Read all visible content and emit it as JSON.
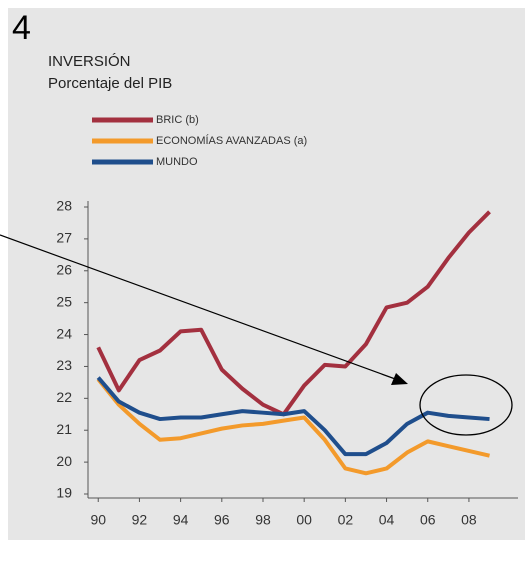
{
  "chart_data": {
    "type": "line",
    "number": "4",
    "title": "INVERSIÓN",
    "subtitle": "Porcentaje del PIB",
    "x": [
      1990,
      1991,
      1992,
      1993,
      1994,
      1995,
      1996,
      1997,
      1998,
      1999,
      2000,
      2001,
      2002,
      2003,
      2004,
      2005,
      2006,
      2007,
      2008,
      2009
    ],
    "series": [
      {
        "name": "BRIC (b)",
        "color": "#a3303f",
        "values": [
          23.6,
          22.25,
          23.2,
          23.5,
          24.1,
          24.15,
          22.9,
          22.3,
          21.8,
          21.5,
          22.4,
          23.05,
          23.0,
          23.7,
          24.85,
          25.0,
          25.5,
          26.4,
          27.2,
          27.85
        ]
      },
      {
        "name": "ECONOMÍAS AVANZADAS (a)",
        "color": "#f39a2b",
        "values": [
          22.6,
          21.8,
          21.2,
          20.7,
          20.75,
          20.9,
          21.05,
          21.15,
          21.2,
          21.3,
          21.4,
          20.7,
          19.8,
          19.65,
          19.8,
          20.3,
          20.65,
          20.5,
          20.35,
          20.2
        ]
      },
      {
        "name": "MUNDO",
        "color": "#1f4e8c",
        "values": [
          22.65,
          21.9,
          21.55,
          21.35,
          21.4,
          21.4,
          21.5,
          21.6,
          21.55,
          21.5,
          21.6,
          21.0,
          20.25,
          20.25,
          20.6,
          21.2,
          21.55,
          21.45,
          21.4,
          21.35
        ]
      }
    ],
    "xlim": [
      1989.6,
      2009.8
    ],
    "xticks": [
      {
        "value": 1990,
        "label": "90"
      },
      {
        "value": 1992,
        "label": "92"
      },
      {
        "value": 1994,
        "label": "94"
      },
      {
        "value": 1996,
        "label": "96"
      },
      {
        "value": 1998,
        "label": "98"
      },
      {
        "value": 2000,
        "label": "00"
      },
      {
        "value": 2002,
        "label": "02"
      },
      {
        "value": 2004,
        "label": "04"
      },
      {
        "value": 2006,
        "label": "06"
      },
      {
        "value": 2008,
        "label": "08"
      }
    ],
    "ylim": [
      19,
      28
    ],
    "yticks": [
      19,
      20,
      21,
      22,
      23,
      24,
      25,
      26,
      27,
      28
    ]
  }
}
